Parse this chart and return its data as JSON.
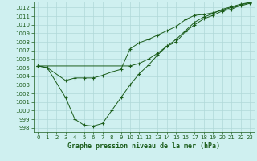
{
  "title": "Graphe pression niveau de la mer (hPa)",
  "bg_color": "#cff0f0",
  "grid_color": "#b0d8d8",
  "line_color": "#1a5c1a",
  "xlim": [
    -0.5,
    23.5
  ],
  "ylim": [
    997.5,
    1012.7
  ],
  "xticks": [
    0,
    1,
    2,
    3,
    4,
    5,
    6,
    7,
    8,
    9,
    10,
    11,
    12,
    13,
    14,
    15,
    16,
    17,
    18,
    19,
    20,
    21,
    22,
    23
  ],
  "yticks": [
    998,
    999,
    1000,
    1001,
    1002,
    1003,
    1004,
    1005,
    1006,
    1007,
    1008,
    1009,
    1010,
    1011,
    1012
  ],
  "series1_x": [
    0,
    1,
    3,
    4,
    5,
    6,
    7,
    8,
    9,
    10,
    11,
    12,
    13,
    14,
    15,
    16,
    17,
    18,
    19,
    20,
    21,
    22,
    23
  ],
  "series1_y": [
    1005.2,
    1005.0,
    1003.5,
    1003.8,
    1003.8,
    1003.8,
    1004.1,
    1004.5,
    1004.8,
    1007.2,
    1007.9,
    1008.3,
    1008.8,
    1009.3,
    1009.8,
    1010.6,
    1011.1,
    1011.2,
    1011.4,
    1011.7,
    1012.0,
    1012.2,
    1012.5
  ],
  "series2_x": [
    0,
    1,
    3,
    4,
    5,
    6,
    7,
    8,
    9,
    10,
    11,
    12,
    13,
    14,
    15,
    16,
    17,
    18,
    19,
    20,
    21,
    22,
    23
  ],
  "series2_y": [
    1005.2,
    1005.0,
    1001.5,
    999.0,
    998.3,
    998.2,
    998.5,
    1000.0,
    1001.5,
    1003.0,
    1004.3,
    1005.3,
    1006.5,
    1007.5,
    1008.3,
    1009.3,
    1010.3,
    1010.9,
    1011.3,
    1011.8,
    1012.1,
    1012.4,
    1012.6
  ],
  "series3_x": [
    0,
    10,
    11,
    12,
    13,
    14,
    15,
    16,
    17,
    18,
    19,
    20,
    21,
    22,
    23
  ],
  "series3_y": [
    1005.2,
    1005.2,
    1005.5,
    1006.0,
    1006.7,
    1007.5,
    1008.0,
    1009.2,
    1010.0,
    1010.7,
    1011.1,
    1011.6,
    1011.8,
    1012.3,
    1012.6
  ],
  "tick_fontsize": 5.0,
  "label_fontsize": 6.0
}
